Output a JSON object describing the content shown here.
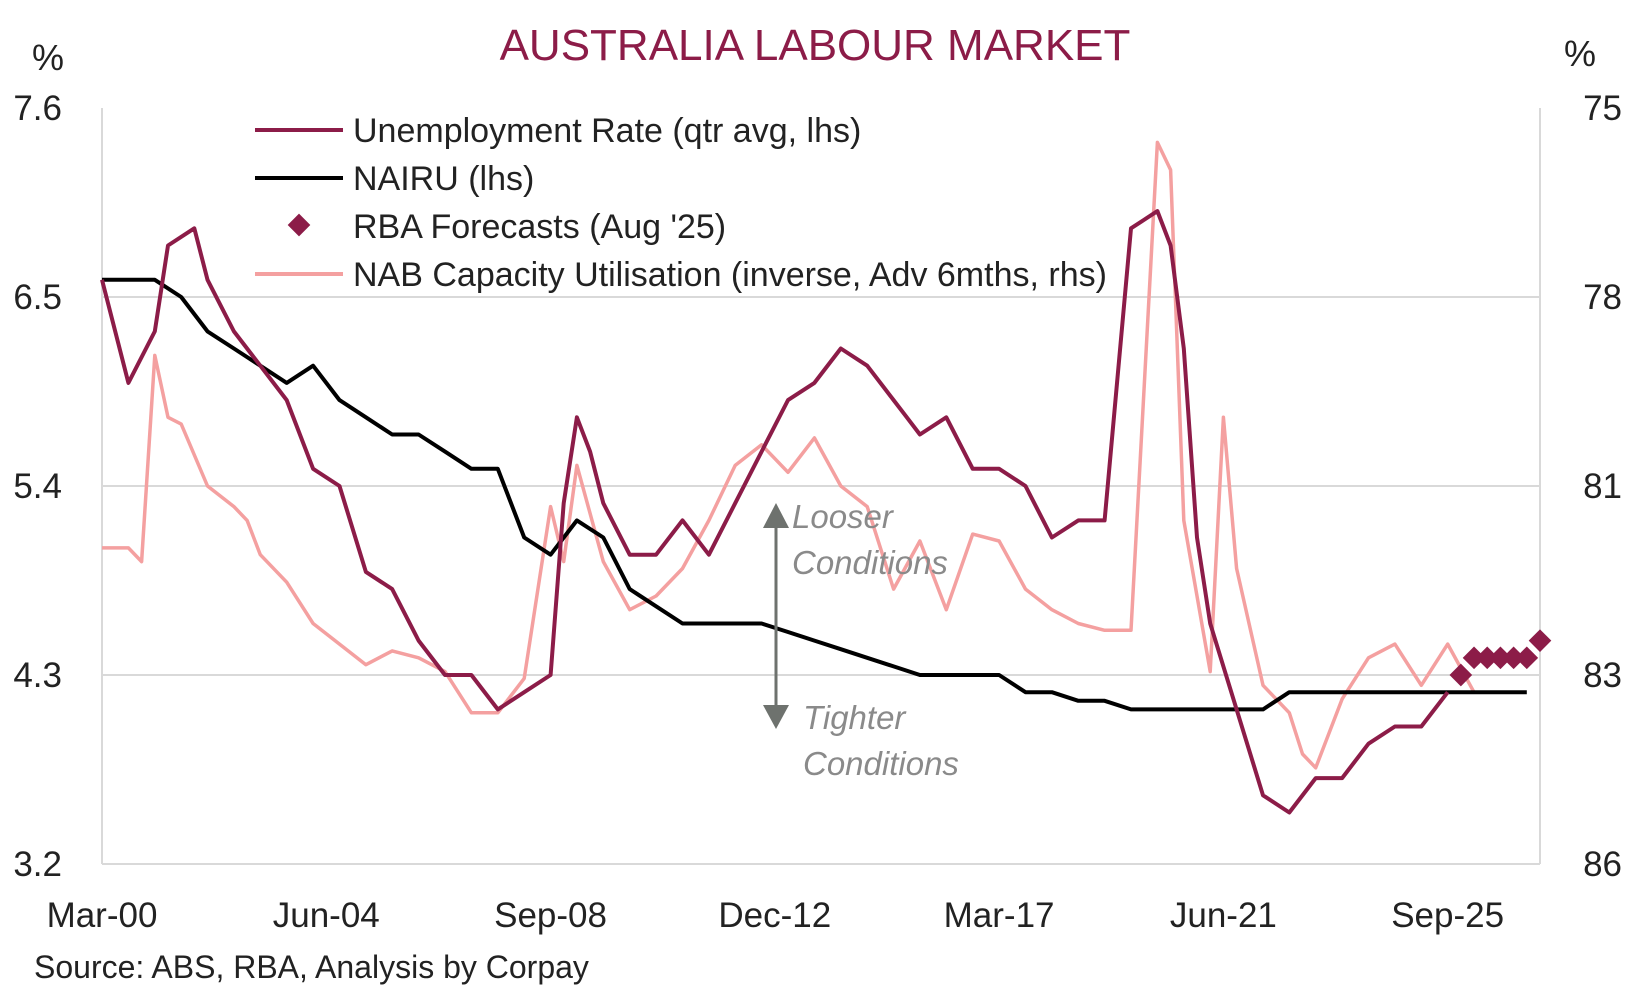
{
  "chart_data": {
    "type": "line",
    "title": "AUSTRALIA LABOUR MARKET",
    "left_axis": {
      "unit": "%",
      "ticks": [
        "7.6",
        "6.5",
        "5.4",
        "4.3",
        "3.2"
      ],
      "range": [
        3.2,
        7.6
      ]
    },
    "right_axis": {
      "unit": "%",
      "ticks": [
        "75",
        "78",
        "81",
        "83",
        "86"
      ],
      "range_inverted": [
        75,
        86
      ]
    },
    "x_tick_labels": [
      "Mar-00",
      "Jun-04",
      "Sep-08",
      "Dec-12",
      "Mar-17",
      "Jun-21",
      "Sep-25"
    ],
    "x_range": [
      2000.0,
      2027.25
    ],
    "source": "Source: ABS, RBA, Analysis by Corpay",
    "annotations": {
      "looser_1": "Looser",
      "looser_2": "Conditions",
      "tighter_1": "Tighter",
      "tighter_2": "Conditions"
    },
    "colors": {
      "unemployment": "#8c1c48",
      "nairu": "#000000",
      "forecast": "#8c1c48",
      "capacity": "#f4a0a0",
      "arrow": "#6e726e",
      "title": "#8c1c48"
    },
    "series": [
      {
        "key": "unemployment",
        "name": "Unemployment Rate (qtr avg, lhs)",
        "axis": "left",
        "x": [
          2000.0,
          2000.5,
          2001.0,
          2001.25,
          2001.75,
          2002.0,
          2002.5,
          2003.0,
          2003.5,
          2004.0,
          2004.5,
          2005.0,
          2005.5,
          2006.0,
          2006.5,
          2007.0,
          2007.5,
          2008.0,
          2008.5,
          2008.75,
          2009.0,
          2009.25,
          2009.5,
          2010.0,
          2010.5,
          2011.0,
          2011.5,
          2012.0,
          2012.5,
          2013.0,
          2013.5,
          2014.0,
          2014.5,
          2015.0,
          2015.25,
          2015.5,
          2016.0,
          2016.5,
          2017.0,
          2017.5,
          2018.0,
          2018.5,
          2019.0,
          2019.5,
          2020.0,
          2020.25,
          2020.5,
          2020.75,
          2021.0,
          2021.5,
          2022.0,
          2022.5,
          2023.0,
          2023.5,
          2024.0,
          2024.5,
          2025.0,
          2025.5
        ],
        "values": [
          6.6,
          6.0,
          6.3,
          6.8,
          6.9,
          6.6,
          6.3,
          6.1,
          5.9,
          5.5,
          5.4,
          4.9,
          4.8,
          4.5,
          4.3,
          4.3,
          4.1,
          4.2,
          4.3,
          5.3,
          5.8,
          5.6,
          5.3,
          5.0,
          5.0,
          5.2,
          5.0,
          5.3,
          5.6,
          5.9,
          6.0,
          6.2,
          6.1,
          5.9,
          5.8,
          5.7,
          5.8,
          5.5,
          5.5,
          5.4,
          5.1,
          5.2,
          5.2,
          6.9,
          7.0,
          6.8,
          6.2,
          5.1,
          4.6,
          4.1,
          3.6,
          3.5,
          3.7,
          3.7,
          3.9,
          4.0,
          4.0,
          4.2
        ]
      },
      {
        "key": "nairu",
        "name": "NAIRU (lhs)",
        "axis": "left",
        "x": [
          2000.0,
          2000.5,
          2001.0,
          2001.5,
          2002.0,
          2002.5,
          2003.0,
          2003.5,
          2004.0,
          2004.5,
          2005.0,
          2005.5,
          2006.0,
          2006.5,
          2007.0,
          2007.5,
          2008.0,
          2008.5,
          2009.0,
          2009.5,
          2010.0,
          2010.5,
          2011.0,
          2011.5,
          2012.0,
          2012.5,
          2013.0,
          2013.5,
          2014.0,
          2014.5,
          2015.0,
          2015.5,
          2016.0,
          2016.5,
          2017.0,
          2017.5,
          2018.0,
          2018.5,
          2019.0,
          2019.5,
          2020.0,
          2021.0,
          2022.0,
          2022.5,
          2023.0,
          2027.0
        ],
        "values": [
          6.6,
          6.6,
          6.6,
          6.5,
          6.3,
          6.2,
          6.1,
          6.0,
          6.1,
          5.9,
          5.8,
          5.7,
          5.7,
          5.6,
          5.5,
          5.5,
          5.1,
          5.0,
          5.2,
          5.1,
          4.8,
          4.7,
          4.6,
          4.6,
          4.6,
          4.6,
          4.55,
          4.5,
          4.45,
          4.4,
          4.35,
          4.3,
          4.3,
          4.3,
          4.3,
          4.2,
          4.2,
          4.15,
          4.15,
          4.1,
          4.1,
          4.1,
          4.1,
          4.2,
          4.2,
          4.2
        ]
      },
      {
        "key": "capacity",
        "name": "NAB Capacity Utilisation (inverse, Adv 6mths, rhs)",
        "axis": "right",
        "x": [
          2000.0,
          2000.5,
          2000.75,
          2001.0,
          2001.25,
          2001.5,
          2002.0,
          2002.5,
          2002.75,
          2003.0,
          2003.5,
          2004.0,
          2004.5,
          2005.0,
          2005.5,
          2006.0,
          2006.5,
          2007.0,
          2007.5,
          2008.0,
          2008.5,
          2008.75,
          2009.0,
          2009.5,
          2010.0,
          2010.5,
          2011.0,
          2011.5,
          2012.0,
          2012.5,
          2013.0,
          2013.5,
          2014.0,
          2014.5,
          2015.0,
          2015.5,
          2016.0,
          2016.5,
          2017.0,
          2017.5,
          2018.0,
          2018.5,
          2019.0,
          2019.5,
          2020.0,
          2020.25,
          2020.5,
          2021.0,
          2021.25,
          2021.5,
          2022.0,
          2022.5,
          2022.75,
          2023.0,
          2023.5,
          2024.0,
          2024.5,
          2025.0,
          2025.5,
          2026.0
        ],
        "values": [
          81.4,
          81.4,
          81.6,
          78.6,
          79.5,
          79.6,
          80.5,
          80.8,
          81.0,
          81.5,
          81.9,
          82.5,
          82.8,
          83.1,
          82.9,
          83.0,
          83.2,
          83.8,
          83.8,
          83.3,
          80.8,
          81.6,
          80.2,
          81.6,
          82.3,
          82.1,
          81.7,
          81.0,
          80.2,
          79.9,
          80.3,
          79.8,
          80.5,
          80.8,
          82.0,
          81.3,
          82.3,
          81.2,
          81.3,
          82.0,
          82.3,
          82.5,
          82.6,
          82.6,
          75.5,
          75.9,
          81.0,
          83.2,
          79.5,
          81.7,
          83.4,
          83.8,
          84.4,
          84.6,
          83.6,
          83.0,
          82.8,
          83.4,
          82.8,
          83.5
        ]
      },
      {
        "key": "forecast",
        "name": "RBA Forecasts (Aug '25)",
        "axis": "left",
        "x": [
          2025.75,
          2026.0,
          2026.25,
          2026.5,
          2026.75,
          2027.0,
          2027.25
        ],
        "values": [
          4.3,
          4.4,
          4.4,
          4.4,
          4.4,
          4.4,
          4.5
        ]
      }
    ]
  }
}
